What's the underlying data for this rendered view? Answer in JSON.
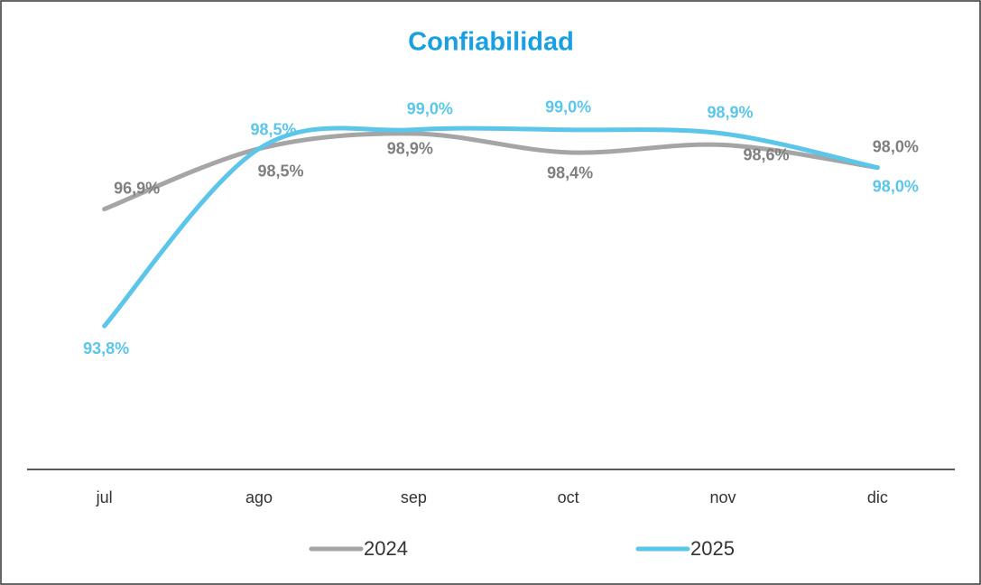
{
  "chart_data": {
    "type": "line",
    "title": "Confiabilidad",
    "categories": [
      "jul",
      "ago",
      "sep",
      "oct",
      "nov",
      "dic"
    ],
    "series": [
      {
        "name": "2024",
        "color": "#a5a5a5",
        "label_color": "#7f7f7f",
        "values": [
          96.9,
          98.5,
          98.9,
          98.4,
          98.6,
          98.0
        ],
        "value_labels": [
          "96,9%",
          "98,5%",
          "98,9%",
          "98,4%",
          "98,6%",
          "98,0%"
        ]
      },
      {
        "name": "2025",
        "color": "#5bc5ea",
        "label_color": "#5bc5ea",
        "values": [
          93.8,
          98.5,
          99.0,
          99.0,
          98.9,
          98.0
        ],
        "value_labels": [
          "93,8%",
          "98,5%",
          "99,0%",
          "99,0%",
          "98,9%",
          "98,0%"
        ]
      }
    ],
    "ylim": [
      90,
      100
    ],
    "legend": "bottom",
    "smooth": true
  }
}
